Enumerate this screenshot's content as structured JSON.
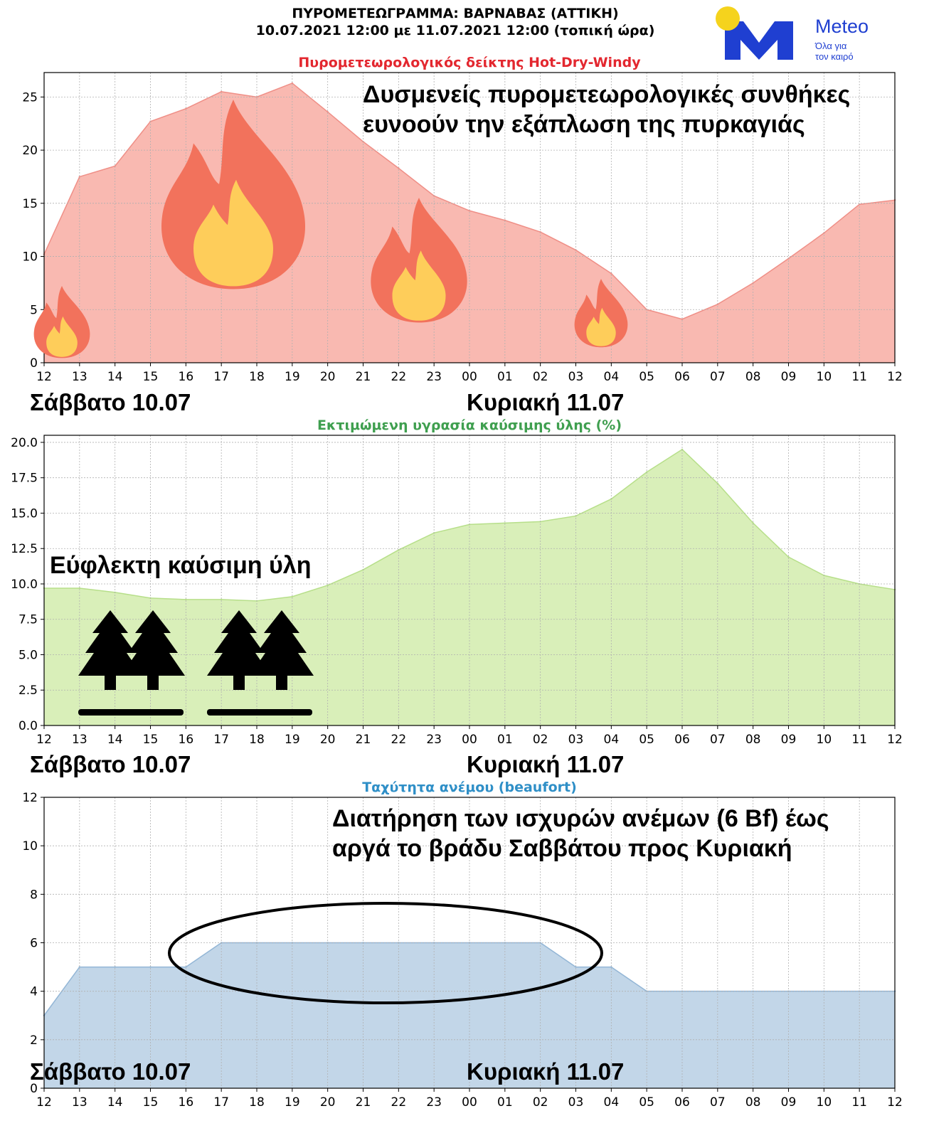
{
  "header": {
    "title_line1": "ΠΥΡΟΜΕΤΕΩΓΡΑΜΜΑ: ΒΑΡΝΑΒΑΣ (ΑΤΤΙΚΗ)",
    "title_line2": "10.07.2021 12:00 με 11.07.2021 12:00 (τοπική ώρα)"
  },
  "logo": {
    "brand": "Meteo",
    "tagline1": "Όλα για",
    "tagline2": "τον καιρό",
    "colors": {
      "blue": "#1f3fd1",
      "sun": "#f5d31d"
    },
    "icon": "meteo-logo-icon"
  },
  "colors": {
    "hdw_fill": "#f9b9b1",
    "hdw_line": "#ef8f87",
    "hdw_title": "#e3272f",
    "fuel_fill": "#d9efb9",
    "fuel_line": "#b7df8a",
    "fuel_title": "#3f9f4f",
    "wind_fill": "#c2d6e8",
    "wind_line": "#93b6d6",
    "wind_title": "#2f8fc7"
  },
  "chart_data": [
    {
      "type": "area",
      "title": "Πυρομετεωρολογικός δείκτης Hot-Dry-Windy",
      "x": [
        "12",
        "13",
        "14",
        "15",
        "16",
        "17",
        "18",
        "19",
        "20",
        "21",
        "22",
        "23",
        "00",
        "01",
        "02",
        "03",
        "04",
        "05",
        "06",
        "07",
        "08",
        "09",
        "10",
        "11",
        "12"
      ],
      "values": [
        10.2,
        17.5,
        18.5,
        22.7,
        23.9,
        25.5,
        25.0,
        26.3,
        23.6,
        20.8,
        18.3,
        15.7,
        14.3,
        13.4,
        12.3,
        10.6,
        8.4,
        5.0,
        4.1,
        5.5,
        7.5,
        9.8,
        12.2,
        14.9,
        15.3
      ],
      "ylim": [
        0,
        27.3
      ],
      "yticks": [
        0,
        5,
        10,
        15,
        20,
        25
      ],
      "grid": true,
      "annotations": [
        "Δυσμενείς πυρομετεωρολογικές συνθήκες",
        "ευνοούν την εξάπλωση της πυρκαγιάς"
      ],
      "day_labels": [
        "Σάββατο 10.07",
        "Κυριακή 11.07"
      ],
      "icons": [
        "fire-icon",
        "fire-icon",
        "fire-icon",
        "fire-icon"
      ]
    },
    {
      "type": "area",
      "title": "Εκτιμώμενη υγρασία καύσιμης ύλης (%)",
      "x": [
        "12",
        "13",
        "14",
        "15",
        "16",
        "17",
        "18",
        "19",
        "20",
        "21",
        "22",
        "23",
        "00",
        "01",
        "02",
        "03",
        "04",
        "05",
        "06",
        "07",
        "08",
        "09",
        "10",
        "11",
        "12"
      ],
      "values": [
        9.7,
        9.7,
        9.4,
        9.0,
        8.9,
        8.9,
        8.8,
        9.1,
        9.9,
        11.0,
        12.4,
        13.6,
        14.2,
        14.3,
        14.4,
        14.8,
        16.0,
        17.9,
        19.5,
        17.1,
        14.3,
        11.9,
        10.6,
        10.0,
        9.6
      ],
      "ylim": [
        0,
        20.5
      ],
      "yticks": [
        "0.0",
        "2.5",
        "5.0",
        "7.5",
        "10.0",
        "12.5",
        "15.0",
        "17.5",
        "20.0"
      ],
      "grid": true,
      "annotations": [
        "Εύφλεκτη καύσιμη ύλη"
      ],
      "day_labels": [
        "Σάββατο 10.07",
        "Κυριακή 11.07"
      ],
      "icons": [
        "tree-icon",
        "tree-icon",
        "tree-icon",
        "tree-icon"
      ]
    },
    {
      "type": "area",
      "title": "Ταχύτητα ανέμου (beaufort)",
      "x": [
        "12",
        "13",
        "14",
        "15",
        "16",
        "17",
        "18",
        "19",
        "20",
        "21",
        "22",
        "23",
        "00",
        "01",
        "02",
        "03",
        "04",
        "05",
        "06",
        "07",
        "08",
        "09",
        "10",
        "11",
        "12"
      ],
      "values": [
        3,
        5,
        5,
        5,
        5,
        6,
        6,
        6,
        6,
        6,
        6,
        6,
        6,
        6,
        6,
        5,
        5,
        4,
        4,
        4,
        4,
        4,
        4,
        4,
        4
      ],
      "ylim": [
        0,
        12
      ],
      "yticks": [
        0,
        2,
        4,
        6,
        8,
        10,
        12
      ],
      "grid": true,
      "annotations": [
        "Διατήρηση των ισχυρών ανέμων (6 Bf) έως",
        "αργά το βράδυ Σαββάτου προς Κυριακή"
      ],
      "day_labels": [
        "Σάββατο 10.07",
        "Κυριακή 11.07"
      ],
      "icons": [
        "highlight-ellipse"
      ]
    }
  ]
}
